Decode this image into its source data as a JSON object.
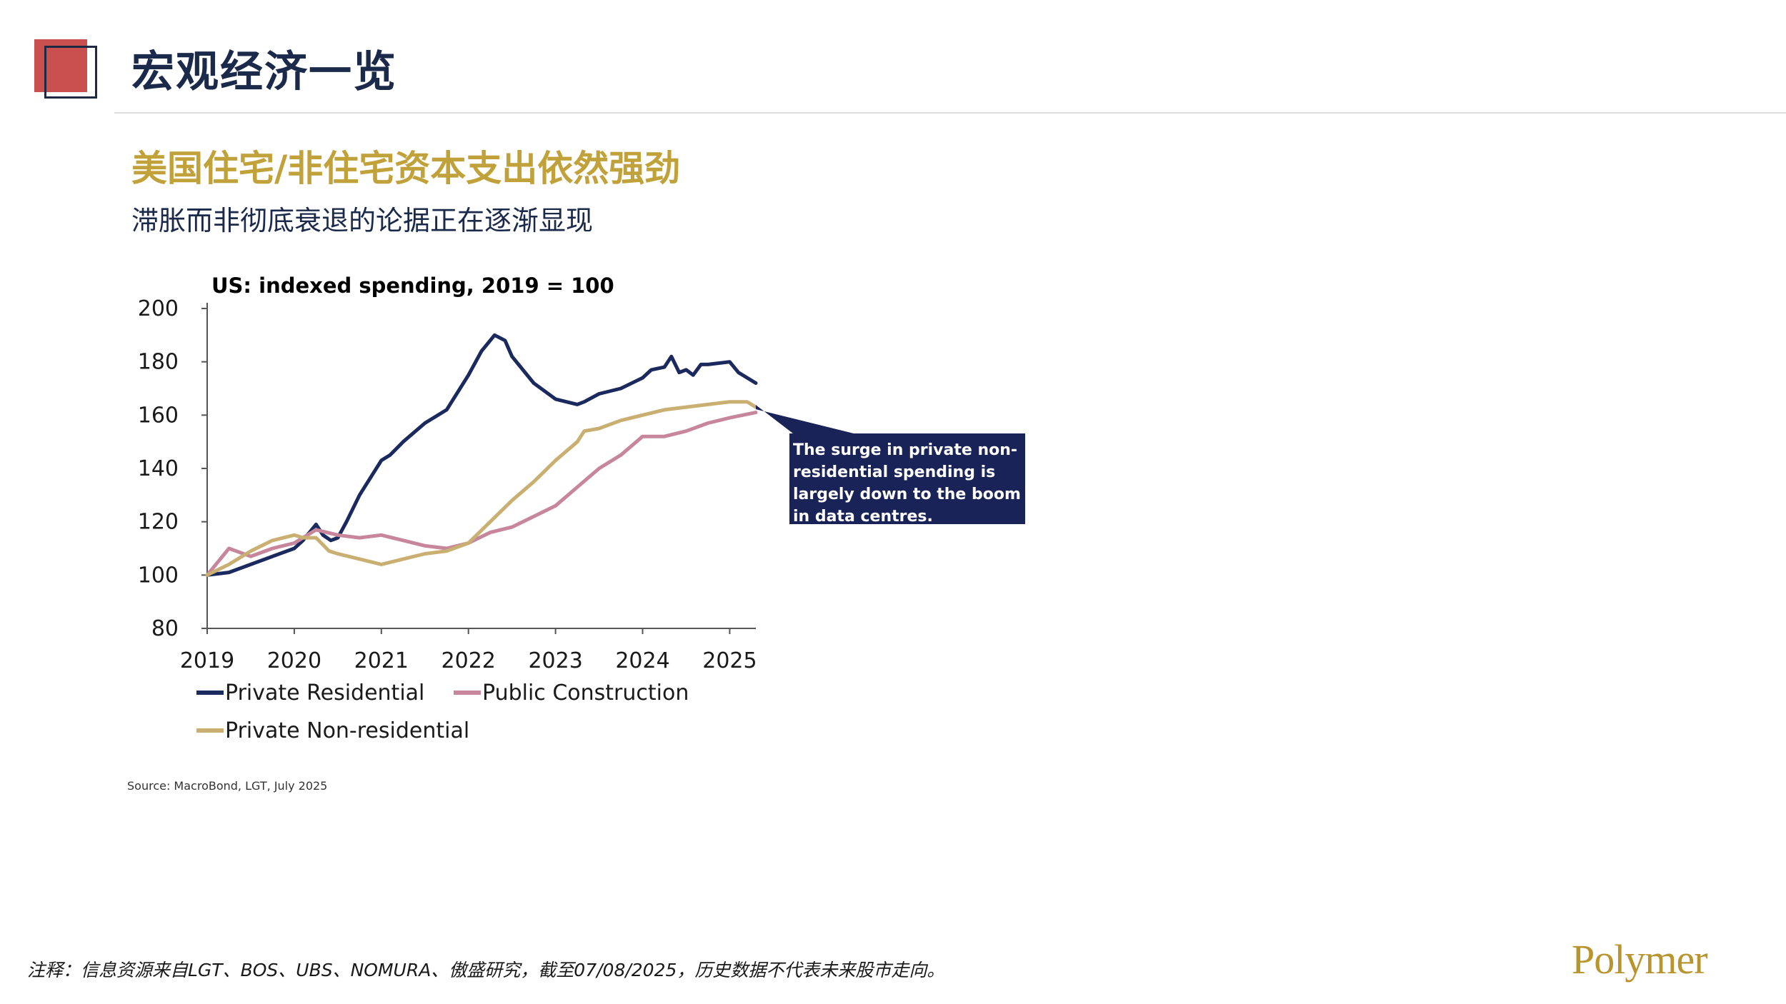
{
  "header": {
    "title": "宏观经济一览",
    "subtitle": "美国住宅/非住宅资本支出依然强劲",
    "subtext": "滞胀而非彻底衰退的论据正在逐渐显现"
  },
  "colors": {
    "brand_red": "#c9504e",
    "title_navy": "#1b2a4a",
    "gold": "#c1a23a",
    "annotation_bg": "#1a2358"
  },
  "chart_data": {
    "type": "line",
    "title": "US: indexed spending, 2019 = 100",
    "xlabel": "",
    "ylabel": "",
    "xlim": [
      2019,
      2025.3
    ],
    "ylim": [
      80,
      200
    ],
    "x_ticks": [
      "2019",
      "2020",
      "2021",
      "2022",
      "2023",
      "2024",
      "2025"
    ],
    "y_ticks": [
      "200",
      "180",
      "160",
      "140",
      "120",
      "100",
      "80"
    ],
    "legend": [
      "Private Residential",
      "Public Construction",
      "Private Non-residential"
    ],
    "annotation": "The surge in private non-residential spending is largely down to the boom in data centres.",
    "series": [
      {
        "name": "Private Residential",
        "color": "#1b2a5e",
        "points": [
          [
            2019.0,
            100
          ],
          [
            2019.25,
            101
          ],
          [
            2019.5,
            104
          ],
          [
            2019.75,
            107
          ],
          [
            2020.0,
            110
          ],
          [
            2020.1,
            113
          ],
          [
            2020.2,
            117
          ],
          [
            2020.25,
            119
          ],
          [
            2020.33,
            115
          ],
          [
            2020.42,
            113
          ],
          [
            2020.5,
            114
          ],
          [
            2020.6,
            120
          ],
          [
            2020.75,
            130
          ],
          [
            2021.0,
            143
          ],
          [
            2021.1,
            145
          ],
          [
            2021.25,
            150
          ],
          [
            2021.5,
            157
          ],
          [
            2021.75,
            162
          ],
          [
            2022.0,
            175
          ],
          [
            2022.15,
            184
          ],
          [
            2022.3,
            190
          ],
          [
            2022.42,
            188
          ],
          [
            2022.5,
            182
          ],
          [
            2022.75,
            172
          ],
          [
            2023.0,
            166
          ],
          [
            2023.25,
            164
          ],
          [
            2023.33,
            165
          ],
          [
            2023.5,
            168
          ],
          [
            2023.75,
            170
          ],
          [
            2024.0,
            174
          ],
          [
            2024.1,
            177
          ],
          [
            2024.25,
            178
          ],
          [
            2024.33,
            182
          ],
          [
            2024.42,
            176
          ],
          [
            2024.5,
            177
          ],
          [
            2024.58,
            175
          ],
          [
            2024.67,
            179
          ],
          [
            2024.75,
            179
          ],
          [
            2025.0,
            180
          ],
          [
            2025.1,
            176
          ],
          [
            2025.3,
            172
          ]
        ]
      },
      {
        "name": "Public Construction",
        "color": "#c7869b",
        "points": [
          [
            2019.0,
            100
          ],
          [
            2019.1,
            104
          ],
          [
            2019.25,
            110
          ],
          [
            2019.5,
            107
          ],
          [
            2019.75,
            110
          ],
          [
            2020.0,
            112
          ],
          [
            2020.25,
            117
          ],
          [
            2020.5,
            115
          ],
          [
            2020.75,
            114
          ],
          [
            2021.0,
            115
          ],
          [
            2021.25,
            113
          ],
          [
            2021.5,
            111
          ],
          [
            2021.75,
            110
          ],
          [
            2022.0,
            112
          ],
          [
            2022.25,
            116
          ],
          [
            2022.5,
            118
          ],
          [
            2022.75,
            122
          ],
          [
            2023.0,
            126
          ],
          [
            2023.25,
            133
          ],
          [
            2023.5,
            140
          ],
          [
            2023.75,
            145
          ],
          [
            2024.0,
            152
          ],
          [
            2024.25,
            152
          ],
          [
            2024.5,
            154
          ],
          [
            2024.75,
            157
          ],
          [
            2025.0,
            159
          ],
          [
            2025.3,
            161
          ]
        ]
      },
      {
        "name": "Private Non-residential",
        "color": "#c9b072",
        "points": [
          [
            2019.0,
            100
          ],
          [
            2019.25,
            104
          ],
          [
            2019.5,
            109
          ],
          [
            2019.75,
            113
          ],
          [
            2020.0,
            115
          ],
          [
            2020.1,
            114
          ],
          [
            2020.25,
            114
          ],
          [
            2020.4,
            109
          ],
          [
            2020.5,
            108
          ],
          [
            2020.75,
            106
          ],
          [
            2021.0,
            104
          ],
          [
            2021.25,
            106
          ],
          [
            2021.5,
            108
          ],
          [
            2021.75,
            109
          ],
          [
            2022.0,
            112
          ],
          [
            2022.25,
            120
          ],
          [
            2022.5,
            128
          ],
          [
            2022.75,
            135
          ],
          [
            2023.0,
            143
          ],
          [
            2023.25,
            150
          ],
          [
            2023.33,
            154
          ],
          [
            2023.5,
            155
          ],
          [
            2023.75,
            158
          ],
          [
            2024.0,
            160
          ],
          [
            2024.25,
            162
          ],
          [
            2024.5,
            163
          ],
          [
            2024.75,
            164
          ],
          [
            2025.0,
            165
          ],
          [
            2025.2,
            165
          ],
          [
            2025.3,
            163
          ]
        ]
      }
    ]
  },
  "source": "Source: MacroBond, LGT, July 2025",
  "footnote": "注释：信息资源来自LGT、BOS、UBS、NOMURA、傲盛研究，截至07/08/2025，历史数据不代表未来股市走向。",
  "brand": "Polymer"
}
